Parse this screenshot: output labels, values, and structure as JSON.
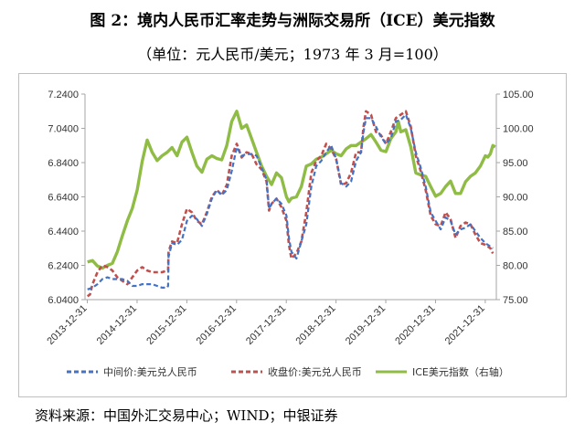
{
  "figure": {
    "title": "图 2：境内人民币汇率走势与洲际交易所（ICE）美元指数",
    "subtitle": "（单位：元人民币/美元；1973 年 3 月=100）",
    "source": "资料来源：中国外汇交易中心；WIND；中银证券"
  },
  "colors": {
    "mid_rate": "#4472c4",
    "close_rate": "#c0504d",
    "ice_index": "#8fbc45"
  },
  "chart_data": {
    "type": "line",
    "x_tick_labels": [
      "2013-12-31",
      "2014-12-31",
      "2015-12-31",
      "2016-12-31",
      "2017-12-31",
      "2018-12-31",
      "2019-12-31",
      "2020-12-31",
      "2021-12-31"
    ],
    "x_range": [
      2013.95,
      2022.22
    ],
    "y_left": {
      "ticks": [
        "6.0400",
        "6.2400",
        "6.4400",
        "6.6400",
        "6.8400",
        "7.0400",
        "7.2400"
      ],
      "range": [
        6.04,
        7.24
      ]
    },
    "y_right": {
      "ticks": [
        "75.00",
        "80.00",
        "85.00",
        "90.00",
        "95.00",
        "100.00",
        "105.00"
      ],
      "range": [
        75,
        105
      ],
      "axis_label": "右轴"
    },
    "legend": [
      "中间价:美元兑人民币",
      "收盘价:美元兑人民币",
      "ICE美元指数（右轴）"
    ],
    "legend_position": "bottom",
    "grid": false,
    "series": [
      {
        "name": "中间价:美元兑人民币",
        "axis": "left",
        "style": "dashed",
        "points": [
          [
            2014.0,
            6.1
          ],
          [
            2014.1,
            6.11
          ],
          [
            2014.2,
            6.13
          ],
          [
            2014.3,
            6.16
          ],
          [
            2014.4,
            6.17
          ],
          [
            2014.5,
            6.16
          ],
          [
            2014.6,
            6.16
          ],
          [
            2014.7,
            6.16
          ],
          [
            2014.8,
            6.15
          ],
          [
            2014.9,
            6.12
          ],
          [
            2015.0,
            6.12
          ],
          [
            2015.1,
            6.13
          ],
          [
            2015.2,
            6.13
          ],
          [
            2015.3,
            6.13
          ],
          [
            2015.4,
            6.12
          ],
          [
            2015.5,
            6.11
          ],
          [
            2015.6,
            6.11
          ],
          [
            2015.62,
            6.12
          ],
          [
            2015.63,
            6.29
          ],
          [
            2015.7,
            6.37
          ],
          [
            2015.8,
            6.36
          ],
          [
            2015.9,
            6.39
          ],
          [
            2016.0,
            6.5
          ],
          [
            2016.1,
            6.53
          ],
          [
            2016.2,
            6.51
          ],
          [
            2016.3,
            6.47
          ],
          [
            2016.4,
            6.54
          ],
          [
            2016.5,
            6.63
          ],
          [
            2016.6,
            6.68
          ],
          [
            2016.7,
            6.65
          ],
          [
            2016.8,
            6.68
          ],
          [
            2016.9,
            6.79
          ],
          [
            2017.0,
            6.93
          ],
          [
            2017.1,
            6.88
          ],
          [
            2017.2,
            6.89
          ],
          [
            2017.3,
            6.89
          ],
          [
            2017.4,
            6.88
          ],
          [
            2017.5,
            6.81
          ],
          [
            2017.6,
            6.74
          ],
          [
            2017.65,
            6.57
          ],
          [
            2017.7,
            6.6
          ],
          [
            2017.8,
            6.63
          ],
          [
            2017.9,
            6.6
          ],
          [
            2018.0,
            6.53
          ],
          [
            2018.05,
            6.4
          ],
          [
            2018.1,
            6.32
          ],
          [
            2018.2,
            6.28
          ],
          [
            2018.3,
            6.38
          ],
          [
            2018.4,
            6.48
          ],
          [
            2018.5,
            6.7
          ],
          [
            2018.6,
            6.82
          ],
          [
            2018.7,
            6.85
          ],
          [
            2018.8,
            6.9
          ],
          [
            2018.9,
            6.94
          ],
          [
            2019.0,
            6.86
          ],
          [
            2019.1,
            6.72
          ],
          [
            2019.2,
            6.7
          ],
          [
            2019.3,
            6.73
          ],
          [
            2019.4,
            6.85
          ],
          [
            2019.5,
            6.9
          ],
          [
            2019.55,
            7.02
          ],
          [
            2019.6,
            7.1
          ],
          [
            2019.7,
            7.1
          ],
          [
            2019.8,
            7.05
          ],
          [
            2019.9,
            6.99
          ],
          [
            2020.0,
            6.95
          ],
          [
            2020.1,
            6.98
          ],
          [
            2020.2,
            7.08
          ],
          [
            2020.3,
            7.09
          ],
          [
            2020.4,
            7.12
          ],
          [
            2020.5,
            7.04
          ],
          [
            2020.6,
            6.9
          ],
          [
            2020.7,
            6.81
          ],
          [
            2020.8,
            6.7
          ],
          [
            2020.9,
            6.55
          ],
          [
            2021.0,
            6.5
          ],
          [
            2021.1,
            6.45
          ],
          [
            2021.2,
            6.52
          ],
          [
            2021.3,
            6.5
          ],
          [
            2021.4,
            6.42
          ],
          [
            2021.5,
            6.45
          ],
          [
            2021.6,
            6.46
          ],
          [
            2021.7,
            6.48
          ],
          [
            2021.8,
            6.44
          ],
          [
            2021.9,
            6.4
          ],
          [
            2022.0,
            6.37
          ],
          [
            2022.1,
            6.35
          ],
          [
            2022.15,
            6.34
          ]
        ]
      },
      {
        "name": "收盘价:美元兑人民币",
        "axis": "left",
        "style": "dashed",
        "points": [
          [
            2014.0,
            6.06
          ],
          [
            2014.05,
            6.07
          ],
          [
            2014.1,
            6.13
          ],
          [
            2014.2,
            6.2
          ],
          [
            2014.3,
            6.24
          ],
          [
            2014.4,
            6.23
          ],
          [
            2014.5,
            6.21
          ],
          [
            2014.6,
            6.17
          ],
          [
            2014.7,
            6.15
          ],
          [
            2014.8,
            6.13
          ],
          [
            2014.9,
            6.17
          ],
          [
            2015.0,
            6.21
          ],
          [
            2015.1,
            6.23
          ],
          [
            2015.2,
            6.21
          ],
          [
            2015.3,
            6.2
          ],
          [
            2015.4,
            6.2
          ],
          [
            2015.5,
            6.2
          ],
          [
            2015.6,
            6.21
          ],
          [
            2015.62,
            6.21
          ],
          [
            2015.63,
            6.32
          ],
          [
            2015.7,
            6.38
          ],
          [
            2015.8,
            6.37
          ],
          [
            2015.9,
            6.48
          ],
          [
            2016.0,
            6.57
          ],
          [
            2016.1,
            6.55
          ],
          [
            2016.2,
            6.5
          ],
          [
            2016.3,
            6.48
          ],
          [
            2016.4,
            6.55
          ],
          [
            2016.5,
            6.64
          ],
          [
            2016.6,
            6.68
          ],
          [
            2016.7,
            6.65
          ],
          [
            2016.8,
            6.71
          ],
          [
            2016.9,
            6.88
          ],
          [
            2017.0,
            6.95
          ],
          [
            2017.1,
            6.87
          ],
          [
            2017.2,
            6.9
          ],
          [
            2017.3,
            6.89
          ],
          [
            2017.4,
            6.83
          ],
          [
            2017.5,
            6.8
          ],
          [
            2017.6,
            6.73
          ],
          [
            2017.65,
            6.56
          ],
          [
            2017.7,
            6.6
          ],
          [
            2017.8,
            6.63
          ],
          [
            2017.9,
            6.58
          ],
          [
            2018.0,
            6.5
          ],
          [
            2018.05,
            6.36
          ],
          [
            2018.1,
            6.28
          ],
          [
            2018.2,
            6.31
          ],
          [
            2018.3,
            6.38
          ],
          [
            2018.4,
            6.55
          ],
          [
            2018.5,
            6.78
          ],
          [
            2018.6,
            6.85
          ],
          [
            2018.7,
            6.88
          ],
          [
            2018.8,
            6.95
          ],
          [
            2018.9,
            6.92
          ],
          [
            2019.0,
            6.86
          ],
          [
            2019.1,
            6.71
          ],
          [
            2019.2,
            6.72
          ],
          [
            2019.3,
            6.78
          ],
          [
            2019.4,
            6.9
          ],
          [
            2019.5,
            6.9
          ],
          [
            2019.55,
            7.05
          ],
          [
            2019.6,
            7.14
          ],
          [
            2019.7,
            7.12
          ],
          [
            2019.8,
            7.02
          ],
          [
            2019.9,
            7.0
          ],
          [
            2020.0,
            6.95
          ],
          [
            2020.1,
            7.02
          ],
          [
            2020.2,
            7.1
          ],
          [
            2020.3,
            7.12
          ],
          [
            2020.4,
            7.14
          ],
          [
            2020.5,
            7.05
          ],
          [
            2020.6,
            6.88
          ],
          [
            2020.7,
            6.79
          ],
          [
            2020.8,
            6.68
          ],
          [
            2020.9,
            6.53
          ],
          [
            2021.0,
            6.48
          ],
          [
            2021.1,
            6.47
          ],
          [
            2021.2,
            6.55
          ],
          [
            2021.3,
            6.51
          ],
          [
            2021.4,
            6.4
          ],
          [
            2021.5,
            6.47
          ],
          [
            2021.6,
            6.49
          ],
          [
            2021.7,
            6.48
          ],
          [
            2021.8,
            6.42
          ],
          [
            2021.9,
            6.37
          ],
          [
            2022.0,
            6.36
          ],
          [
            2022.1,
            6.34
          ],
          [
            2022.15,
            6.31
          ]
        ]
      },
      {
        "name": "ICE美元指数（右轴）",
        "axis": "right",
        "style": "solid",
        "points": [
          [
            2014.0,
            80.5
          ],
          [
            2014.1,
            80.7
          ],
          [
            2014.2,
            79.9
          ],
          [
            2014.3,
            79.6
          ],
          [
            2014.4,
            80.0
          ],
          [
            2014.5,
            80.3
          ],
          [
            2014.6,
            82.0
          ],
          [
            2014.7,
            84.3
          ],
          [
            2014.8,
            86.5
          ],
          [
            2014.9,
            88.3
          ],
          [
            2015.0,
            91.0
          ],
          [
            2015.1,
            95.2
          ],
          [
            2015.2,
            98.3
          ],
          [
            2015.3,
            96.5
          ],
          [
            2015.4,
            95.3
          ],
          [
            2015.5,
            96.0
          ],
          [
            2015.6,
            96.5
          ],
          [
            2015.7,
            97.2
          ],
          [
            2015.8,
            96.0
          ],
          [
            2015.9,
            98.0
          ],
          [
            2016.0,
            98.7
          ],
          [
            2016.1,
            96.5
          ],
          [
            2016.2,
            94.5
          ],
          [
            2016.3,
            93.6
          ],
          [
            2016.4,
            95.5
          ],
          [
            2016.5,
            96.0
          ],
          [
            2016.6,
            95.6
          ],
          [
            2016.7,
            95.4
          ],
          [
            2016.8,
            97.5
          ],
          [
            2016.9,
            101.0
          ],
          [
            2017.0,
            102.5
          ],
          [
            2017.1,
            100.0
          ],
          [
            2017.2,
            100.5
          ],
          [
            2017.3,
            98.5
          ],
          [
            2017.4,
            96.5
          ],
          [
            2017.5,
            94.5
          ],
          [
            2017.6,
            93.0
          ],
          [
            2017.7,
            91.8
          ],
          [
            2017.8,
            93.5
          ],
          [
            2017.9,
            92.8
          ],
          [
            2018.0,
            90.0
          ],
          [
            2018.05,
            89.3
          ],
          [
            2018.1,
            89.8
          ],
          [
            2018.2,
            90.0
          ],
          [
            2018.3,
            91.5
          ],
          [
            2018.4,
            94.5
          ],
          [
            2018.5,
            94.8
          ],
          [
            2018.6,
            95.5
          ],
          [
            2018.7,
            95.8
          ],
          [
            2018.8,
            96.3
          ],
          [
            2018.9,
            96.8
          ],
          [
            2019.0,
            96.3
          ],
          [
            2019.1,
            96.0
          ],
          [
            2019.2,
            97.0
          ],
          [
            2019.3,
            97.5
          ],
          [
            2019.4,
            97.5
          ],
          [
            2019.5,
            98.0
          ],
          [
            2019.6,
            98.5
          ],
          [
            2019.7,
            99.1
          ],
          [
            2019.8,
            98.0
          ],
          [
            2019.9,
            96.8
          ],
          [
            2020.0,
            96.6
          ],
          [
            2020.1,
            98.5
          ],
          [
            2020.2,
            99.5
          ],
          [
            2020.25,
            101.0
          ],
          [
            2020.3,
            99.5
          ],
          [
            2020.4,
            99.8
          ],
          [
            2020.5,
            97.3
          ],
          [
            2020.6,
            93.5
          ],
          [
            2020.7,
            93.2
          ],
          [
            2020.8,
            93.0
          ],
          [
            2020.9,
            91.5
          ],
          [
            2021.0,
            90.1
          ],
          [
            2021.1,
            90.5
          ],
          [
            2021.2,
            91.5
          ],
          [
            2021.3,
            92.3
          ],
          [
            2021.4,
            90.5
          ],
          [
            2021.5,
            90.5
          ],
          [
            2021.6,
            92.2
          ],
          [
            2021.7,
            93.0
          ],
          [
            2021.8,
            93.5
          ],
          [
            2021.9,
            94.5
          ],
          [
            2022.0,
            96.0
          ],
          [
            2022.05,
            95.8
          ],
          [
            2022.1,
            96.3
          ],
          [
            2022.15,
            97.5
          ],
          [
            2022.2,
            97.3
          ]
        ]
      }
    ]
  }
}
